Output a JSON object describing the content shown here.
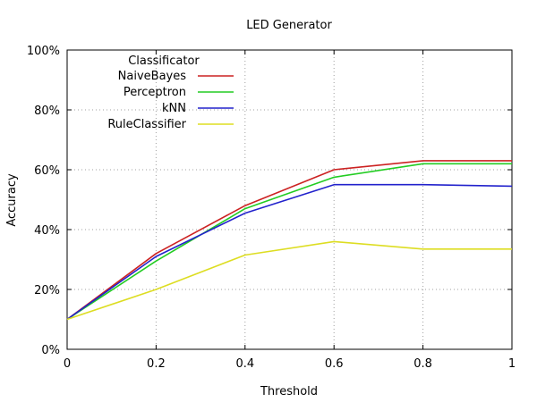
{
  "chart_data": {
    "type": "line",
    "title": "LED Generator",
    "xlabel": "Threshold",
    "ylabel": "Accuracy",
    "xlim": [
      0,
      1
    ],
    "ylim": [
      0,
      100
    ],
    "xticks": [
      0,
      0.2,
      0.4,
      0.6,
      0.8,
      1
    ],
    "xtick_labels": [
      "0",
      "0.2",
      "0.4",
      "0.6",
      "0.8",
      "1"
    ],
    "yticks": [
      0,
      20,
      40,
      60,
      80,
      100
    ],
    "ytick_labels": [
      "0%",
      "20%",
      "40%",
      "60%",
      "80%",
      "100%"
    ],
    "grid": true,
    "legend": {
      "title": "Classificator",
      "placement": "top-left"
    },
    "x": [
      0,
      0.2,
      0.4,
      0.6,
      0.8,
      1
    ],
    "series": [
      {
        "name": "NaiveBayes",
        "color": "#cc2222",
        "values": [
          10,
          32,
          48,
          60,
          63,
          63
        ]
      },
      {
        "name": "Perceptron",
        "color": "#22cc22",
        "values": [
          10,
          29.5,
          47,
          57.5,
          62,
          62
        ]
      },
      {
        "name": "kNN",
        "color": "#2222cc",
        "values": [
          10,
          31,
          45.5,
          55,
          55,
          54.5
        ]
      },
      {
        "name": "RuleClassifier",
        "color": "#dddd22",
        "values": [
          10,
          20,
          31.5,
          36,
          33.5,
          33.5
        ]
      }
    ]
  }
}
